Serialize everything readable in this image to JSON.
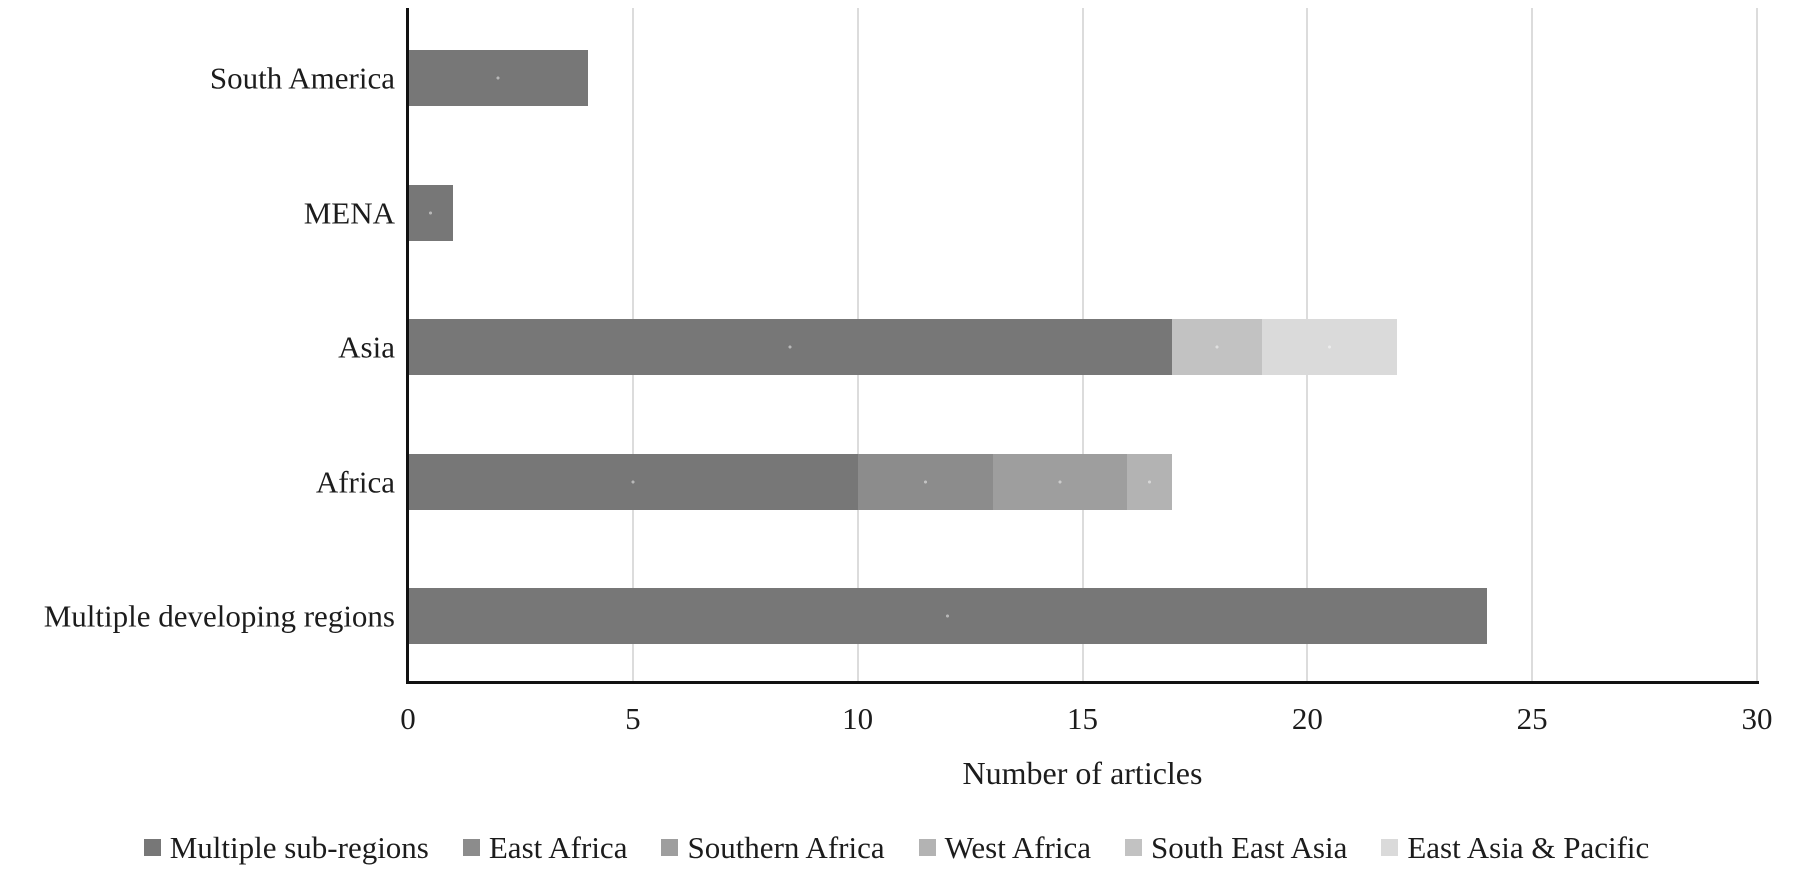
{
  "colors": {
    "axis": "#111111",
    "gridline": "#dcdcdc",
    "text": "#1c1c1c",
    "background": "#ffffff"
  },
  "chart_data": {
    "type": "bar",
    "orientation": "horizontal",
    "stacked": true,
    "title": "",
    "xlabel": "Number of articles",
    "ylabel": "",
    "xlim": [
      0,
      30
    ],
    "xticks": [
      0,
      5,
      10,
      15,
      20,
      25,
      30
    ],
    "grid": true,
    "legend_position": "bottom",
    "categories": [
      "South America",
      "MENA",
      "Asia",
      "Africa",
      "Multiple developing regions"
    ],
    "series": [
      {
        "name": "Multiple sub-regions",
        "color": "#777777",
        "values": [
          4,
          1,
          17,
          10,
          24
        ]
      },
      {
        "name": "East Africa",
        "color": "#8c8c8c",
        "values": [
          0,
          0,
          0,
          3,
          0
        ]
      },
      {
        "name": "Southern Africa",
        "color": "#9e9e9e",
        "values": [
          0,
          0,
          0,
          3,
          0
        ]
      },
      {
        "name": "West Africa",
        "color": "#b3b3b3",
        "values": [
          0,
          0,
          0,
          1,
          0
        ]
      },
      {
        "name": "South East Asia",
        "color": "#c2c2c2",
        "values": [
          0,
          0,
          2,
          0,
          0
        ]
      },
      {
        "name": "East Asia & Pacific",
        "color": "#dadada",
        "values": [
          0,
          0,
          3,
          0,
          0
        ]
      }
    ]
  }
}
